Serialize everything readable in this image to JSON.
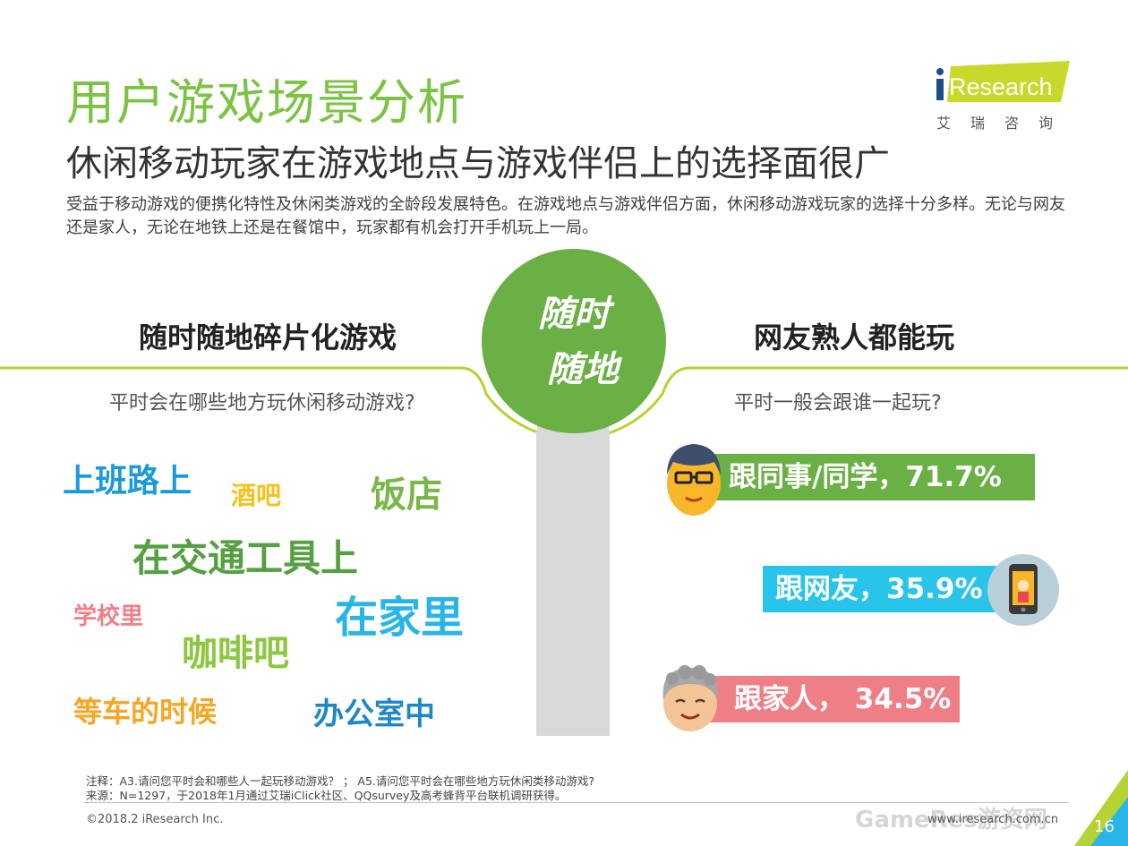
{
  "header": {
    "title": "用户游戏场景分析",
    "subtitle": "休闲移动玩家在游戏地点与游戏伴侣上的选择面很广",
    "intro": "受益于移动游戏的便携化特性及休闲类游戏的全龄段发展特色。在游戏地点与游戏伴侣方面，休闲移动游戏玩家的选择十分多样。无论与网友还是家人，无论在地铁上还是在餐馆中，玩家都有机会打开手机玩上一局。"
  },
  "logo": {
    "brand": "iResearch",
    "chinese": "艾瑞咨询"
  },
  "center_badge": {
    "line1": "随时",
    "line2": "随地"
  },
  "left": {
    "heading": "随时随地碎片化游戏",
    "question": "平时会在哪些地方玩休闲移动游戏?",
    "places": [
      "上班路上",
      "酒吧",
      "饭店",
      "在交通工具上",
      "学校里",
      "在家里",
      "咖啡吧",
      "等车的时候",
      "办公室中"
    ]
  },
  "right": {
    "heading": "网友熟人都能玩",
    "question": "平时一般会跟谁一起玩?",
    "companions": [
      {
        "label": "跟同事/同学，71.7%",
        "color": "#6ab045",
        "icon": "colleague-face-icon"
      },
      {
        "label": "跟网友，35.9%",
        "color": "#29c4ea",
        "icon": "phone-friend-icon"
      },
      {
        "label": "跟家人， 34.5%",
        "color": "#ef7f86",
        "icon": "family-elder-face-icon"
      }
    ]
  },
  "notes": {
    "note": "注释：A3.请问您平时会和哪些人一起玩移动游戏？ ； A5.请问您平时会在哪些地方玩休闲类移动游戏?",
    "source": "来源：N=1297，于2018年1月通过艾瑞iClick社区、QQsurvey及高考蜂背平台联机调研获得。"
  },
  "footer": {
    "copyright": "©2018.2 iResearch Inc.",
    "url": "www.iresearch.com.cn",
    "page_number": "16",
    "watermark": "GameRes游资网"
  },
  "colors": {
    "brand_green": "#7cc243",
    "circle_green": "#6ab045",
    "divider_green": "#b5d334",
    "gray_bar": "#d9d9d9",
    "place_blue": "#1a9ad6",
    "place_yellow": "#f5c21a",
    "place_green": "#7ab648",
    "place_darkgreen": "#55a042",
    "place_pink": "#ef7f86",
    "place_cyan": "#29b6e6",
    "place_lime": "#8dc63f",
    "place_orange": "#f5a623",
    "place_darkblue": "#1e88c7"
  }
}
